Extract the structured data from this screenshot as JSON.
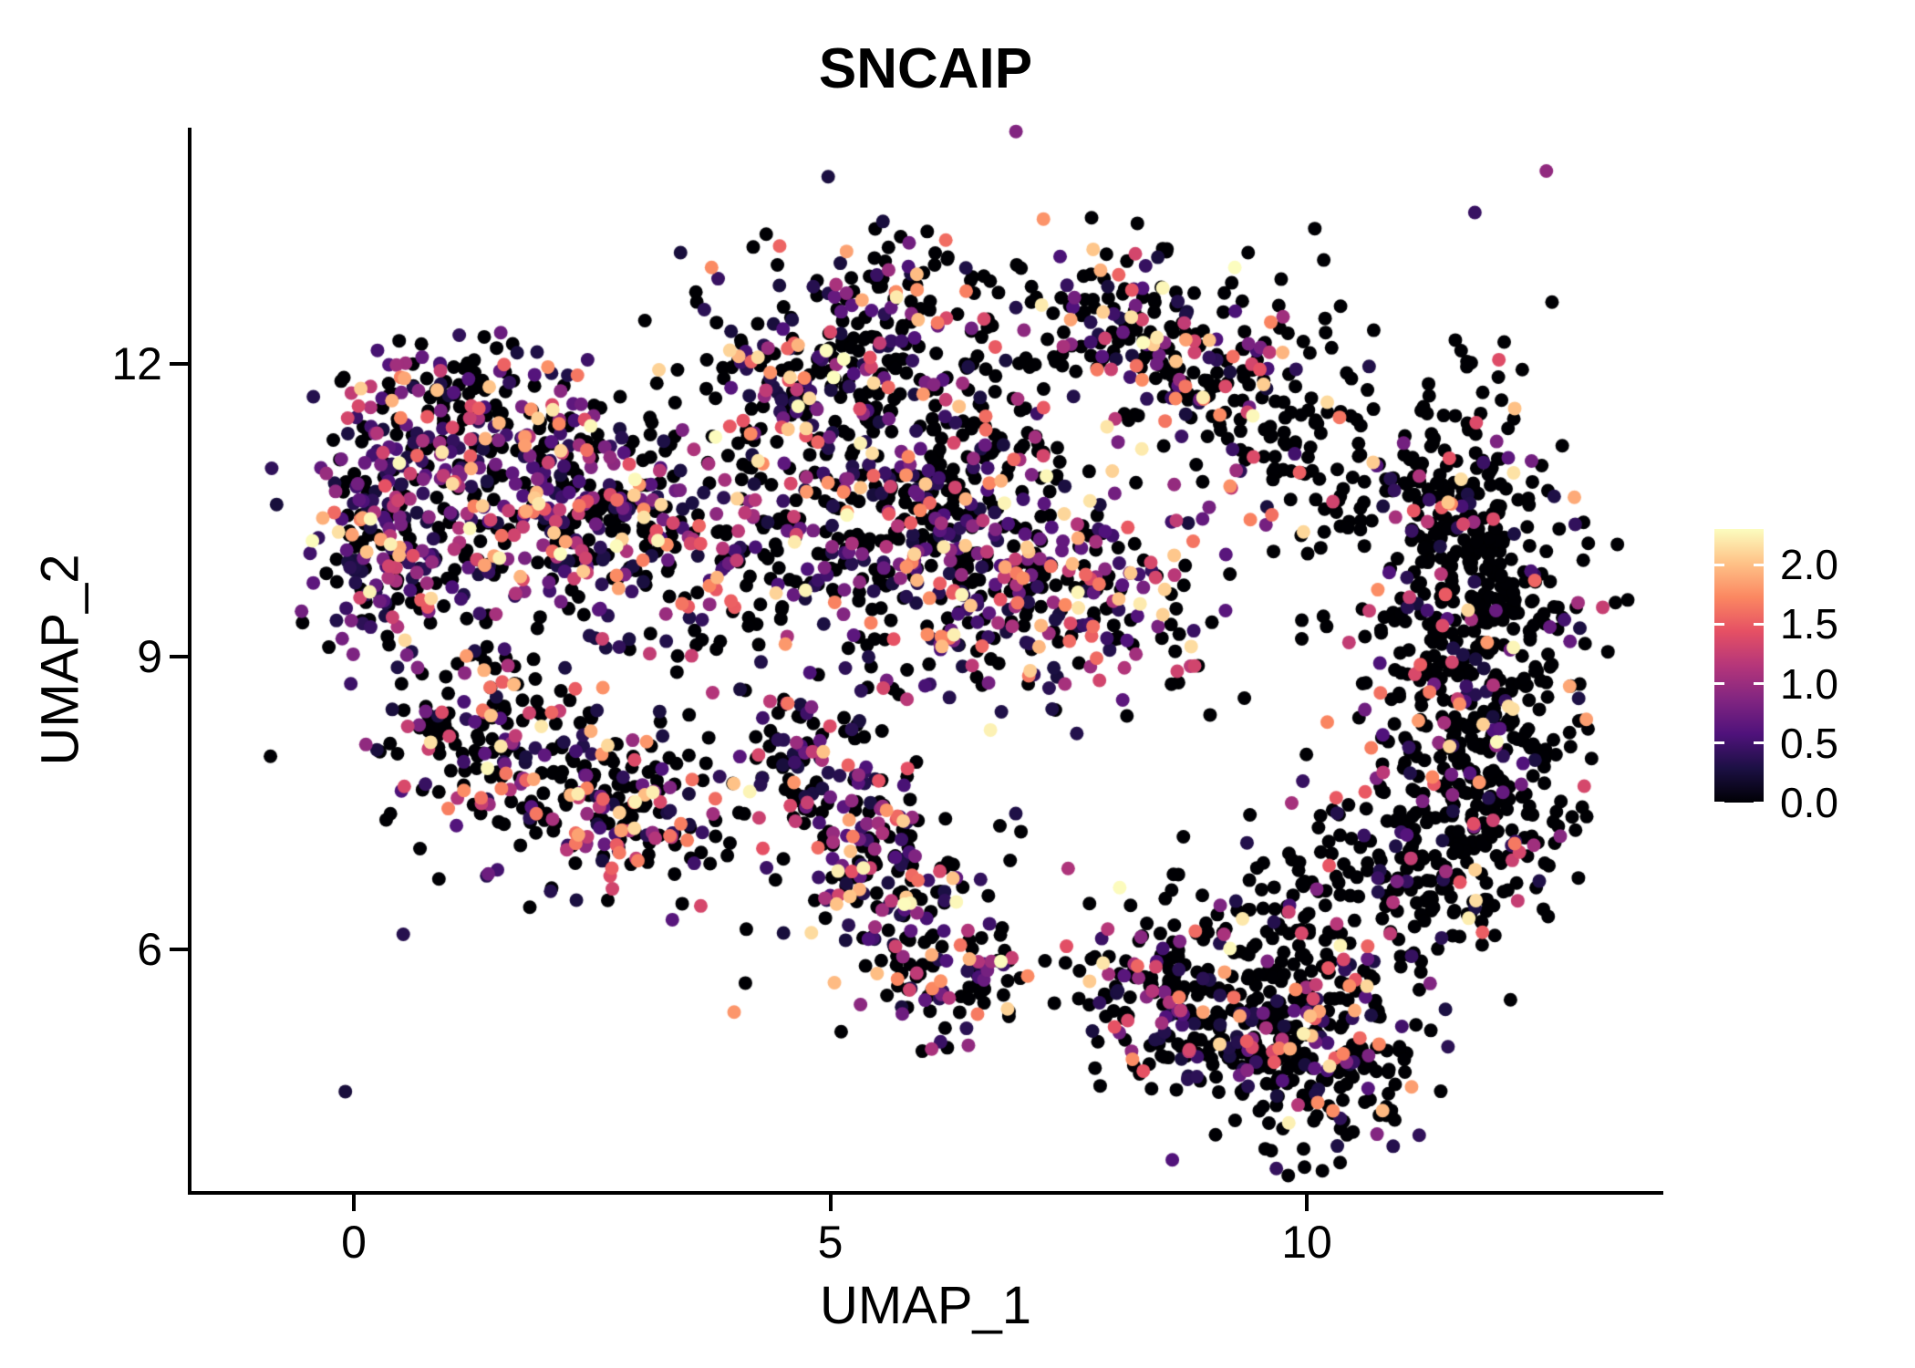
{
  "chart_data": {
    "type": "scatter",
    "title": "SNCAIP",
    "xlabel": "UMAP_1",
    "ylabel": "UMAP_2",
    "x_ticks": [
      {
        "value": 0,
        "label": "0"
      },
      {
        "value": 5,
        "label": "5"
      },
      {
        "value": 10,
        "label": "10"
      }
    ],
    "y_ticks": [
      {
        "value": 6,
        "label": "6"
      },
      {
        "value": 9,
        "label": "9"
      },
      {
        "value": 12,
        "label": "12"
      }
    ],
    "x_range": [
      -1.72,
      13.72
    ],
    "y_range": [
      3.52,
      14.42
    ],
    "grid": false,
    "legend_position": "right",
    "color_scale": {
      "domain": [
        0,
        2.3
      ],
      "colormap": "magma",
      "stops": [
        "#000004",
        "#1C1044",
        "#4F127B",
        "#812581",
        "#B5367A",
        "#E55064",
        "#FB8761",
        "#FEC287",
        "#FCFDBF"
      ],
      "zero_expression_color": "#000004",
      "legend_ticks": [
        {
          "value": 2.0,
          "label": "2.0"
        },
        {
          "value": 1.5,
          "label": "1.5"
        },
        {
          "value": 1.0,
          "label": "1.0"
        },
        {
          "value": 0.5,
          "label": "0.5"
        },
        {
          "value": 0.0,
          "label": "0.0"
        }
      ]
    },
    "marker_radius_px": 7.5,
    "nonzero_expression_min": 0.25,
    "random_seed": 42,
    "clusters": [
      {
        "cx": 0.6,
        "cy": 10.6,
        "sdx": 0.55,
        "sdy": 0.55,
        "n": 180,
        "p0": 0.35
      },
      {
        "cx": 1.8,
        "cy": 10.9,
        "sdx": 0.6,
        "sdy": 0.55,
        "n": 190,
        "p0": 0.38
      },
      {
        "cx": 2.5,
        "cy": 10.2,
        "sdx": 0.5,
        "sdy": 0.5,
        "n": 130,
        "p0": 0.45
      },
      {
        "cx": 1.1,
        "cy": 11.6,
        "sdx": 0.6,
        "sdy": 0.35,
        "n": 100,
        "p0": 0.5
      },
      {
        "cx": 0.3,
        "cy": 9.8,
        "sdx": 0.4,
        "sdy": 0.45,
        "n": 80,
        "p0": 0.4
      },
      {
        "cx": 1.3,
        "cy": 8.3,
        "sdx": 0.5,
        "sdy": 0.5,
        "n": 130,
        "p0": 0.55
      },
      {
        "cx": 2.3,
        "cy": 7.6,
        "sdx": 0.55,
        "sdy": 0.45,
        "n": 120,
        "p0": 0.55
      },
      {
        "cx": 3.1,
        "cy": 7.3,
        "sdx": 0.45,
        "sdy": 0.4,
        "n": 100,
        "p0": 0.5
      },
      {
        "cx": 3.7,
        "cy": 10.3,
        "sdx": 0.5,
        "sdy": 0.7,
        "n": 130,
        "p0": 0.5
      },
      {
        "cx": 5.6,
        "cy": 12.3,
        "sdx": 0.7,
        "sdy": 0.5,
        "n": 200,
        "p0": 0.55
      },
      {
        "cx": 4.7,
        "cy": 11.6,
        "sdx": 0.5,
        "sdy": 0.4,
        "n": 100,
        "p0": 0.5
      },
      {
        "cx": 5.3,
        "cy": 10.1,
        "sdx": 0.6,
        "sdy": 0.6,
        "n": 160,
        "p0": 0.5
      },
      {
        "cx": 6.6,
        "cy": 9.7,
        "sdx": 0.7,
        "sdy": 0.6,
        "n": 200,
        "p0": 0.45
      },
      {
        "cx": 7.8,
        "cy": 9.6,
        "sdx": 0.5,
        "sdy": 0.5,
        "n": 120,
        "p0": 0.45
      },
      {
        "cx": 6.3,
        "cy": 10.9,
        "sdx": 0.6,
        "sdy": 0.4,
        "n": 110,
        "p0": 0.55
      },
      {
        "cx": 4.6,
        "cy": 7.9,
        "sdx": 0.35,
        "sdy": 0.45,
        "n": 90,
        "p0": 0.5
      },
      {
        "cx": 5.3,
        "cy": 7.2,
        "sdx": 0.4,
        "sdy": 0.45,
        "n": 100,
        "p0": 0.45
      },
      {
        "cx": 5.8,
        "cy": 6.3,
        "sdx": 0.35,
        "sdy": 0.5,
        "n": 90,
        "p0": 0.5
      },
      {
        "cx": 6.4,
        "cy": 5.8,
        "sdx": 0.35,
        "sdy": 0.4,
        "n": 70,
        "p0": 0.55
      },
      {
        "cx": 8.0,
        "cy": 12.4,
        "sdx": 0.55,
        "sdy": 0.4,
        "n": 130,
        "p0": 0.65
      },
      {
        "cx": 9.0,
        "cy": 11.9,
        "sdx": 0.4,
        "sdy": 0.4,
        "n": 90,
        "p0": 0.6
      },
      {
        "cx": 9.9,
        "cy": 11.2,
        "sdx": 0.5,
        "sdy": 0.7,
        "n": 120,
        "p0": 0.8
      },
      {
        "cx": 11.6,
        "cy": 10.6,
        "sdx": 0.55,
        "sdy": 0.6,
        "n": 200,
        "p0": 0.8
      },
      {
        "cx": 11.8,
        "cy": 9.3,
        "sdx": 0.55,
        "sdy": 0.6,
        "n": 210,
        "p0": 0.78
      },
      {
        "cx": 11.9,
        "cy": 8.0,
        "sdx": 0.5,
        "sdy": 0.6,
        "n": 200,
        "p0": 0.78
      },
      {
        "cx": 11.3,
        "cy": 6.9,
        "sdx": 0.6,
        "sdy": 0.6,
        "n": 180,
        "p0": 0.75
      },
      {
        "cx": 9.3,
        "cy": 5.3,
        "sdx": 0.6,
        "sdy": 0.45,
        "n": 180,
        "p0": 0.7
      },
      {
        "cx": 10.3,
        "cy": 4.8,
        "sdx": 0.5,
        "sdy": 0.45,
        "n": 160,
        "p0": 0.72
      },
      {
        "cx": 8.4,
        "cy": 5.6,
        "sdx": 0.45,
        "sdy": 0.4,
        "n": 100,
        "p0": 0.7
      },
      {
        "cx": 10.0,
        "cy": 6.2,
        "sdx": 0.6,
        "sdy": 0.5,
        "n": 130,
        "p0": 0.75
      },
      {
        "cx": 6.0,
        "cy": 9.5,
        "sdx": 3.2,
        "sdy": 2.0,
        "n": 160,
        "p0": 0.65
      }
    ]
  },
  "colors": {
    "background": "#FFFFFF",
    "axis": "#000000",
    "text": "#000000"
  }
}
